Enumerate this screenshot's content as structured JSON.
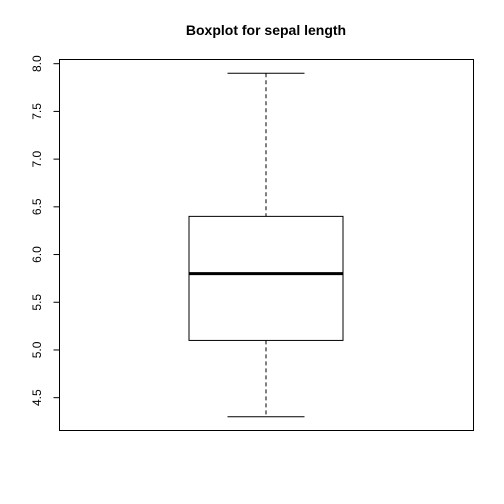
{
  "chart_data": {
    "type": "boxplot",
    "title": "Boxplot for sepal length",
    "xlabel": "",
    "ylabel": "",
    "ylim": [
      4.156,
      8.044
    ],
    "y_ticks": [
      4.5,
      5.0,
      5.5,
      6.0,
      6.5,
      7.0,
      7.5,
      8.0
    ],
    "y_tick_labels": [
      "4.5",
      "5.0",
      "5.5",
      "6.0",
      "6.5",
      "7.0",
      "7.5",
      "8.0"
    ],
    "boxes": [
      {
        "min": 4.3,
        "q1": 5.1,
        "median": 5.8,
        "q3": 6.4,
        "max": 7.9
      }
    ],
    "grid": false,
    "colors": {
      "stroke": "#000000",
      "box_fill": "#ffffff"
    }
  }
}
